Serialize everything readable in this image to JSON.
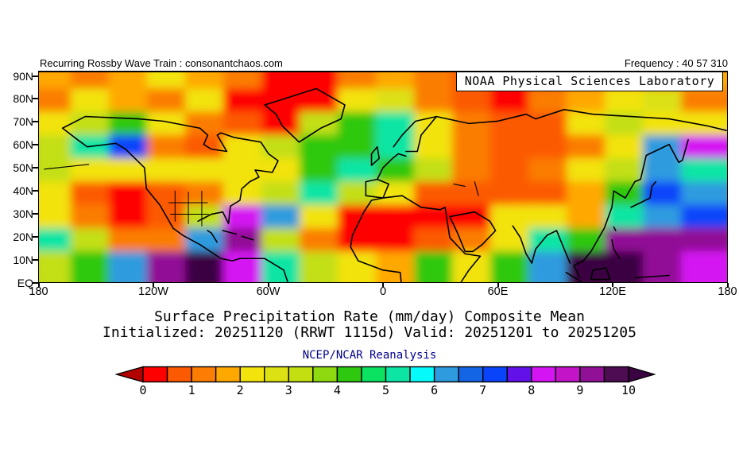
{
  "header": {
    "left": "Recurring Rossby Wave Train : consonantchaos.com",
    "right": "Frequency : 40 57 310"
  },
  "branding": {
    "banner": "NOAA Physical Sciences Laboratory"
  },
  "titles": {
    "main": "Surface Precipitation Rate (mm/day) Composite Mean",
    "init_valid": "Initialized: 20251120 (RRWT 1115d) Valid: 20251201 to 20251205",
    "dataset": "NCEP/NCAR Reanalysis"
  },
  "colors": {
    "dataset_label": "#00008b",
    "axis_text": "#000000",
    "map_base": "#fb7d03"
  },
  "chart_data": {
    "type": "heatmap",
    "title": "Surface Precipitation Rate (mm/day) Composite Mean",
    "subtitle": "Initialized: 20251120 (RRWT 1115d) Valid: 20251201 to 20251205",
    "dataset": "NCEP/NCAR Reanalysis",
    "units": "mm/day",
    "x_axis": {
      "kind": "longitude",
      "range_deg": [
        -180,
        180
      ],
      "ticks": [
        "180",
        "120W",
        "60W",
        "0",
        "60E",
        "120E",
        "180"
      ]
    },
    "y_axis": {
      "kind": "latitude",
      "range_deg": [
        90,
        0
      ],
      "ticks": [
        "90N",
        "80N",
        "70N",
        "60N",
        "50N",
        "40N",
        "30N",
        "20N",
        "10N",
        "EQ"
      ]
    },
    "colorbar": {
      "min": 0,
      "max": 10,
      "step": 0.5,
      "tick_labels": [
        "0",
        "1",
        "2",
        "3",
        "4",
        "5",
        "6",
        "7",
        "8",
        "9",
        "10"
      ],
      "colors": [
        "#fe0000",
        "#fc5a02",
        "#fb7d03",
        "#ffa800",
        "#f2e30c",
        "#dce113",
        "#c3df12",
        "#8fd910",
        "#2ec80e",
        "#0be261",
        "#0de5a4",
        "#05fbfb",
        "#2e9bdf",
        "#1464e6",
        "#0944fb",
        "#6211e9",
        "#d414f3",
        "#c414c8",
        "#911196",
        "#4e0d52"
      ],
      "under_arrow_color": "#b20000",
      "over_arrow_color": "#3a0442"
    },
    "grid_estimate": {
      "note_units": "mm/day",
      "lat_centers": [
        85,
        75,
        65,
        55,
        45,
        35,
        25,
        15,
        5
      ],
      "lon_centers": [
        -170,
        -150,
        -130,
        -110,
        -90,
        -70,
        -50,
        -30,
        -10,
        10,
        30,
        50,
        70,
        90,
        110,
        130,
        150,
        170
      ],
      "values_mm_per_day": [
        [
          1.5,
          1,
          1.5,
          2,
          1.5,
          1,
          0.3,
          0.3,
          1,
          1.5,
          1,
          0.5,
          0.3,
          0.5,
          1,
          1.5,
          1,
          1.5
        ],
        [
          1,
          2,
          1.5,
          1,
          2,
          0.3,
          0.3,
          0.3,
          2,
          2.5,
          1,
          0.5,
          0.3,
          1,
          1.5,
          2,
          2.5,
          1
        ],
        [
          2,
          3,
          4,
          2,
          1,
          0.5,
          0.3,
          3,
          4,
          5,
          2,
          1,
          0.5,
          0.5,
          2,
          3,
          2,
          2
        ],
        [
          3,
          5,
          7,
          1,
          0.5,
          2,
          3,
          4,
          4,
          5,
          2,
          1,
          0.5,
          0.5,
          1,
          2,
          6,
          8
        ],
        [
          3,
          2,
          2,
          2,
          2,
          2,
          2,
          4,
          5,
          4,
          3,
          1,
          0.5,
          1,
          2,
          3,
          6,
          5
        ],
        [
          2,
          0.5,
          0.3,
          0.5,
          1,
          2,
          3,
          5,
          3,
          2,
          0.5,
          0.5,
          0.5,
          0.5,
          1.5,
          4,
          7,
          6
        ],
        [
          2,
          1,
          0.3,
          0.5,
          3,
          8,
          6,
          2,
          0.3,
          0.3,
          0.3,
          0.3,
          2,
          2,
          1.5,
          5,
          6,
          7
        ],
        [
          5,
          3,
          1,
          1,
          6,
          9,
          3,
          1,
          0.3,
          0.3,
          0.5,
          1,
          2,
          5,
          4,
          9,
          9,
          9
        ],
        [
          3,
          4,
          6,
          9,
          10,
          8,
          5,
          3,
          2,
          1.5,
          4,
          2,
          4,
          6,
          10,
          10,
          9,
          8
        ]
      ]
    }
  }
}
